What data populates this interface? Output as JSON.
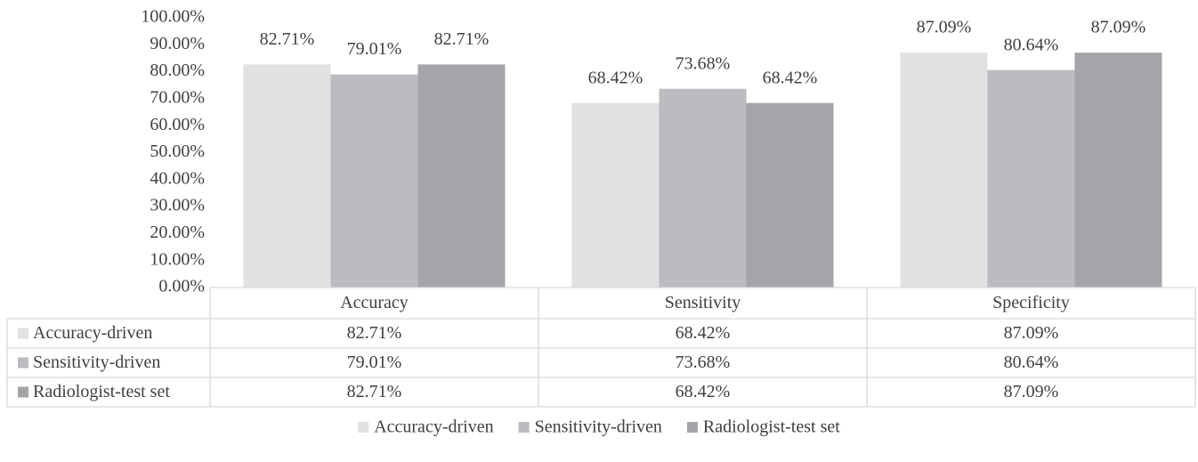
{
  "chart_data": {
    "type": "bar",
    "categories": [
      "Accuracy",
      "Sensitivity",
      "Specificity"
    ],
    "series": [
      {
        "name": "Accuracy-driven",
        "color": "#e0e1e3",
        "values": [
          82.71,
          68.42,
          87.09
        ],
        "value_labels": [
          "82.71%",
          "68.42%",
          "87.09%"
        ]
      },
      {
        "name": "Sensitivity-driven",
        "color": "#bbbcbf",
        "values": [
          79.01,
          73.68,
          80.64
        ],
        "value_labels": [
          "79.01%",
          "73.68%",
          "80.64%"
        ]
      },
      {
        "name": "Radiologist-test set",
        "color": "#a4a5a8",
        "values": [
          82.71,
          68.42,
          87.09
        ],
        "value_labels": [
          "82.71%",
          "68.42%",
          "87.09%"
        ]
      }
    ],
    "ylim": [
      0,
      100
    ],
    "yticks": [
      {
        "value": 0,
        "label": "0.00%"
      },
      {
        "value": 10,
        "label": "10.00%"
      },
      {
        "value": 20,
        "label": "20.00%"
      },
      {
        "value": 30,
        "label": "30.00%"
      },
      {
        "value": 40,
        "label": "40.00%"
      },
      {
        "value": 50,
        "label": "50.00%"
      },
      {
        "value": 60,
        "label": "60.00%"
      },
      {
        "value": 70,
        "label": "70.00%"
      },
      {
        "value": 80,
        "label": "80.00%"
      },
      {
        "value": 90,
        "label": "90.00%"
      },
      {
        "value": 100,
        "label": "100.00%"
      }
    ],
    "legend": "bottom"
  }
}
